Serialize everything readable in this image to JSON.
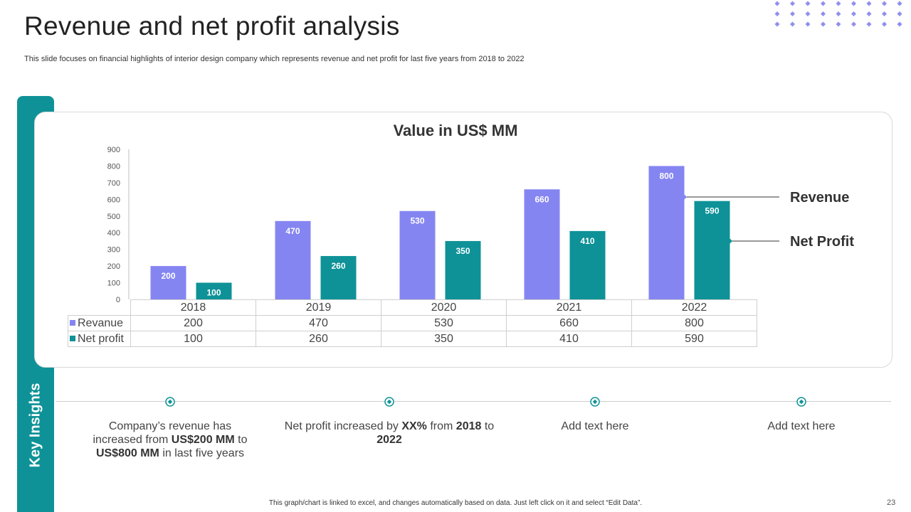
{
  "slide": {
    "title": "Revenue and net profit analysis",
    "subtitle": "This slide focuses on financial highlights of interior design company which represents revenue and net profit for last five years from 2018 to 2022",
    "side_label": "Key Insights",
    "footer": "This graph/chart is linked to excel, and changes automatically based on data. Just left click on it and select “Edit Data”.",
    "page_number": "23"
  },
  "colors": {
    "revenue": "#8585f2",
    "net_profit": "#0e9297",
    "accent": "#0e9297",
    "dots": "#8f8ff0"
  },
  "chart_data": {
    "type": "bar",
    "title": "Value in US$ MM",
    "categories": [
      "2018",
      "2019",
      "2020",
      "2021",
      "2022"
    ],
    "series": [
      {
        "name": "Revanue",
        "values": [
          200,
          470,
          530,
          660,
          800
        ]
      },
      {
        "name": "Net profit",
        "values": [
          100,
          260,
          350,
          410,
          590
        ]
      }
    ],
    "ylim": [
      0,
      900
    ],
    "yticks": [
      "0",
      "100",
      "200",
      "300",
      "400",
      "500",
      "600",
      "700",
      "800",
      "900"
    ],
    "callouts": [
      "Revenue",
      "Net Profit"
    ],
    "legend": "data-table-below",
    "grid": false
  },
  "insights": [
    {
      "parts": [
        {
          "text": "Company’s revenue has increased from ",
          "bold": false
        },
        {
          "text": "US$200 MM",
          "bold": true
        },
        {
          "text": " to ",
          "bold": false
        },
        {
          "text": "US$800 MM",
          "bold": true
        },
        {
          "text": " in last five years",
          "bold": false
        }
      ]
    },
    {
      "parts": [
        {
          "text": "Net profit increased by ",
          "bold": false
        },
        {
          "text": "XX%",
          "bold": true
        },
        {
          "text": " from ",
          "bold": false
        },
        {
          "text": "2018",
          "bold": true
        },
        {
          "text": " to ",
          "bold": false
        },
        {
          "text": "2022",
          "bold": true
        }
      ]
    },
    {
      "parts": [
        {
          "text": "Add text here",
          "bold": false
        }
      ]
    },
    {
      "parts": [
        {
          "text": "Add text here",
          "bold": false
        }
      ]
    }
  ]
}
